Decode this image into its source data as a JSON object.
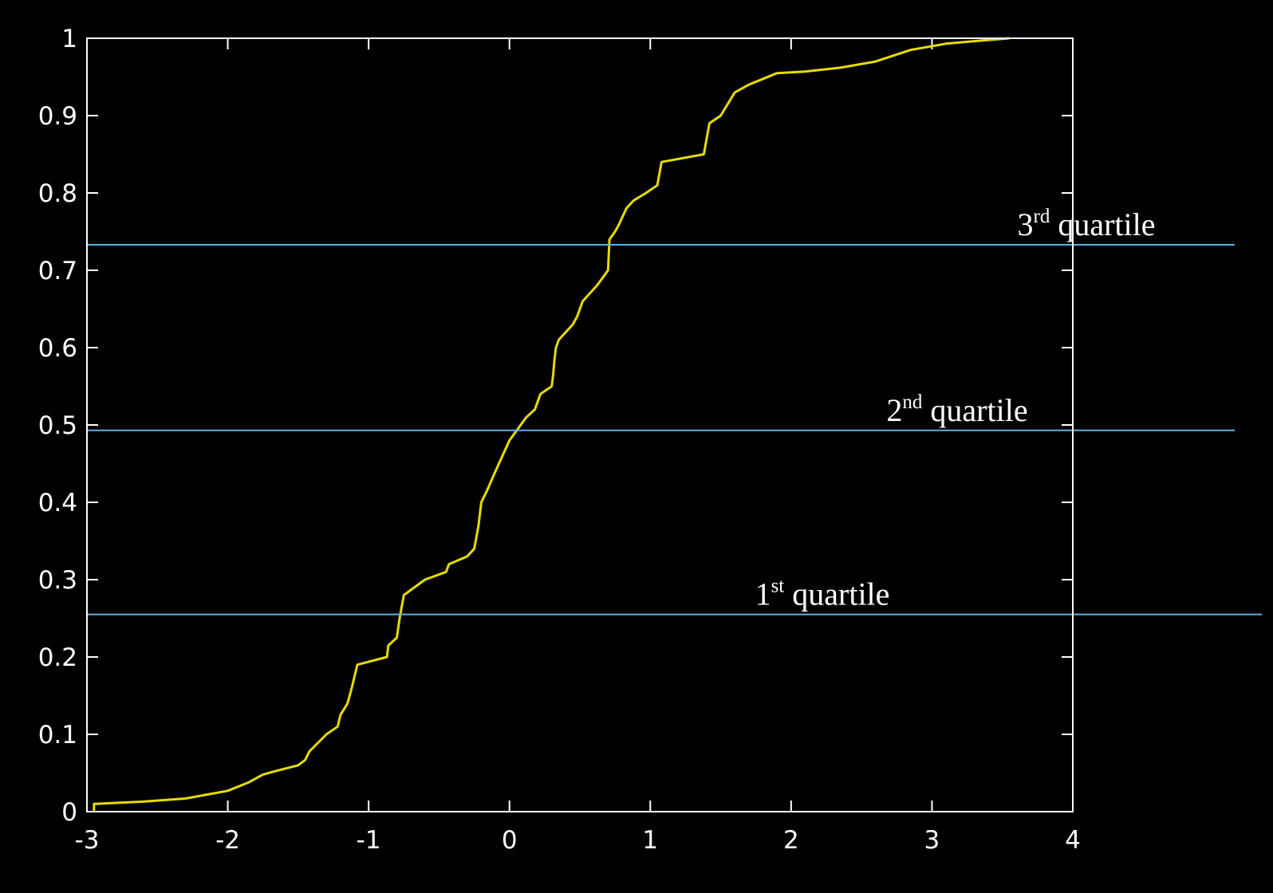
{
  "chart_data": {
    "type": "line",
    "title": "",
    "xlabel": "",
    "ylabel": "",
    "xlim": [
      -3,
      4
    ],
    "ylim": [
      0,
      1
    ],
    "x_ticks": [
      -3,
      -2,
      -1,
      0,
      1,
      2,
      3,
      4
    ],
    "x_tick_labels": [
      "-3",
      "-2",
      "-1",
      "0",
      "1",
      "2",
      "3",
      "4"
    ],
    "y_ticks": [
      0,
      0.1,
      0.2,
      0.3,
      0.4,
      0.5,
      0.6,
      0.7,
      0.8,
      0.9,
      1
    ],
    "y_tick_labels": [
      "0",
      "0.1",
      "0.2",
      "0.3",
      "0.4",
      "0.5",
      "0.6",
      "0.7",
      "0.8",
      "0.9",
      "1"
    ],
    "grid": false,
    "line_color": "#e6dc00",
    "quartile_line_color": "#5ab4e6",
    "series": [
      {
        "points": [
          [
            -2.95,
            0.0
          ],
          [
            -2.95,
            0.01
          ],
          [
            -2.6,
            0.013
          ],
          [
            -2.3,
            0.017
          ],
          [
            -2.0,
            0.027
          ],
          [
            -1.85,
            0.038
          ],
          [
            -1.75,
            0.048
          ],
          [
            -1.65,
            0.053
          ],
          [
            -1.5,
            0.06
          ],
          [
            -1.45,
            0.067
          ],
          [
            -1.42,
            0.078
          ],
          [
            -1.3,
            0.1
          ],
          [
            -1.22,
            0.11
          ],
          [
            -1.2,
            0.125
          ],
          [
            -1.15,
            0.14
          ],
          [
            -1.12,
            0.16
          ],
          [
            -1.08,
            0.19
          ],
          [
            -0.87,
            0.2
          ],
          [
            -0.86,
            0.215
          ],
          [
            -0.8,
            0.225
          ],
          [
            -0.78,
            0.25
          ],
          [
            -0.75,
            0.28
          ],
          [
            -0.6,
            0.3
          ],
          [
            -0.45,
            0.31
          ],
          [
            -0.43,
            0.32
          ],
          [
            -0.3,
            0.33
          ],
          [
            -0.25,
            0.34
          ],
          [
            -0.22,
            0.37
          ],
          [
            -0.2,
            0.4
          ],
          [
            -0.16,
            0.415
          ],
          [
            -0.1,
            0.44
          ],
          [
            0.0,
            0.48
          ],
          [
            0.08,
            0.5
          ],
          [
            0.12,
            0.51
          ],
          [
            0.18,
            0.52
          ],
          [
            0.22,
            0.54
          ],
          [
            0.3,
            0.55
          ],
          [
            0.31,
            0.565
          ],
          [
            0.32,
            0.585
          ],
          [
            0.33,
            0.6
          ],
          [
            0.35,
            0.61
          ],
          [
            0.4,
            0.62
          ],
          [
            0.45,
            0.63
          ],
          [
            0.48,
            0.64
          ],
          [
            0.52,
            0.66
          ],
          [
            0.62,
            0.68
          ],
          [
            0.7,
            0.7
          ],
          [
            0.71,
            0.74
          ],
          [
            0.75,
            0.75
          ],
          [
            0.78,
            0.76
          ],
          [
            0.83,
            0.78
          ],
          [
            0.88,
            0.79
          ],
          [
            0.97,
            0.8
          ],
          [
            1.05,
            0.81
          ],
          [
            1.08,
            0.84
          ],
          [
            1.38,
            0.85
          ],
          [
            1.42,
            0.89
          ],
          [
            1.5,
            0.9
          ],
          [
            1.6,
            0.93
          ],
          [
            1.7,
            0.94
          ],
          [
            1.9,
            0.955
          ],
          [
            2.1,
            0.957
          ],
          [
            2.35,
            0.962
          ],
          [
            2.6,
            0.97
          ],
          [
            2.85,
            0.985
          ],
          [
            3.1,
            0.993
          ],
          [
            3.35,
            0.997
          ],
          [
            3.55,
            1.0
          ]
        ]
      }
    ],
    "quartiles": [
      {
        "y": 0.255,
        "label_main": "1",
        "label_sup": "st",
        "label_rest": " quartile"
      },
      {
        "y": 0.493,
        "label_main": "2",
        "label_sup": "nd",
        "label_rest": " quartile"
      },
      {
        "y": 0.733,
        "label_main": "3",
        "label_sup": "rd",
        "label_rest": " quartile"
      }
    ]
  }
}
